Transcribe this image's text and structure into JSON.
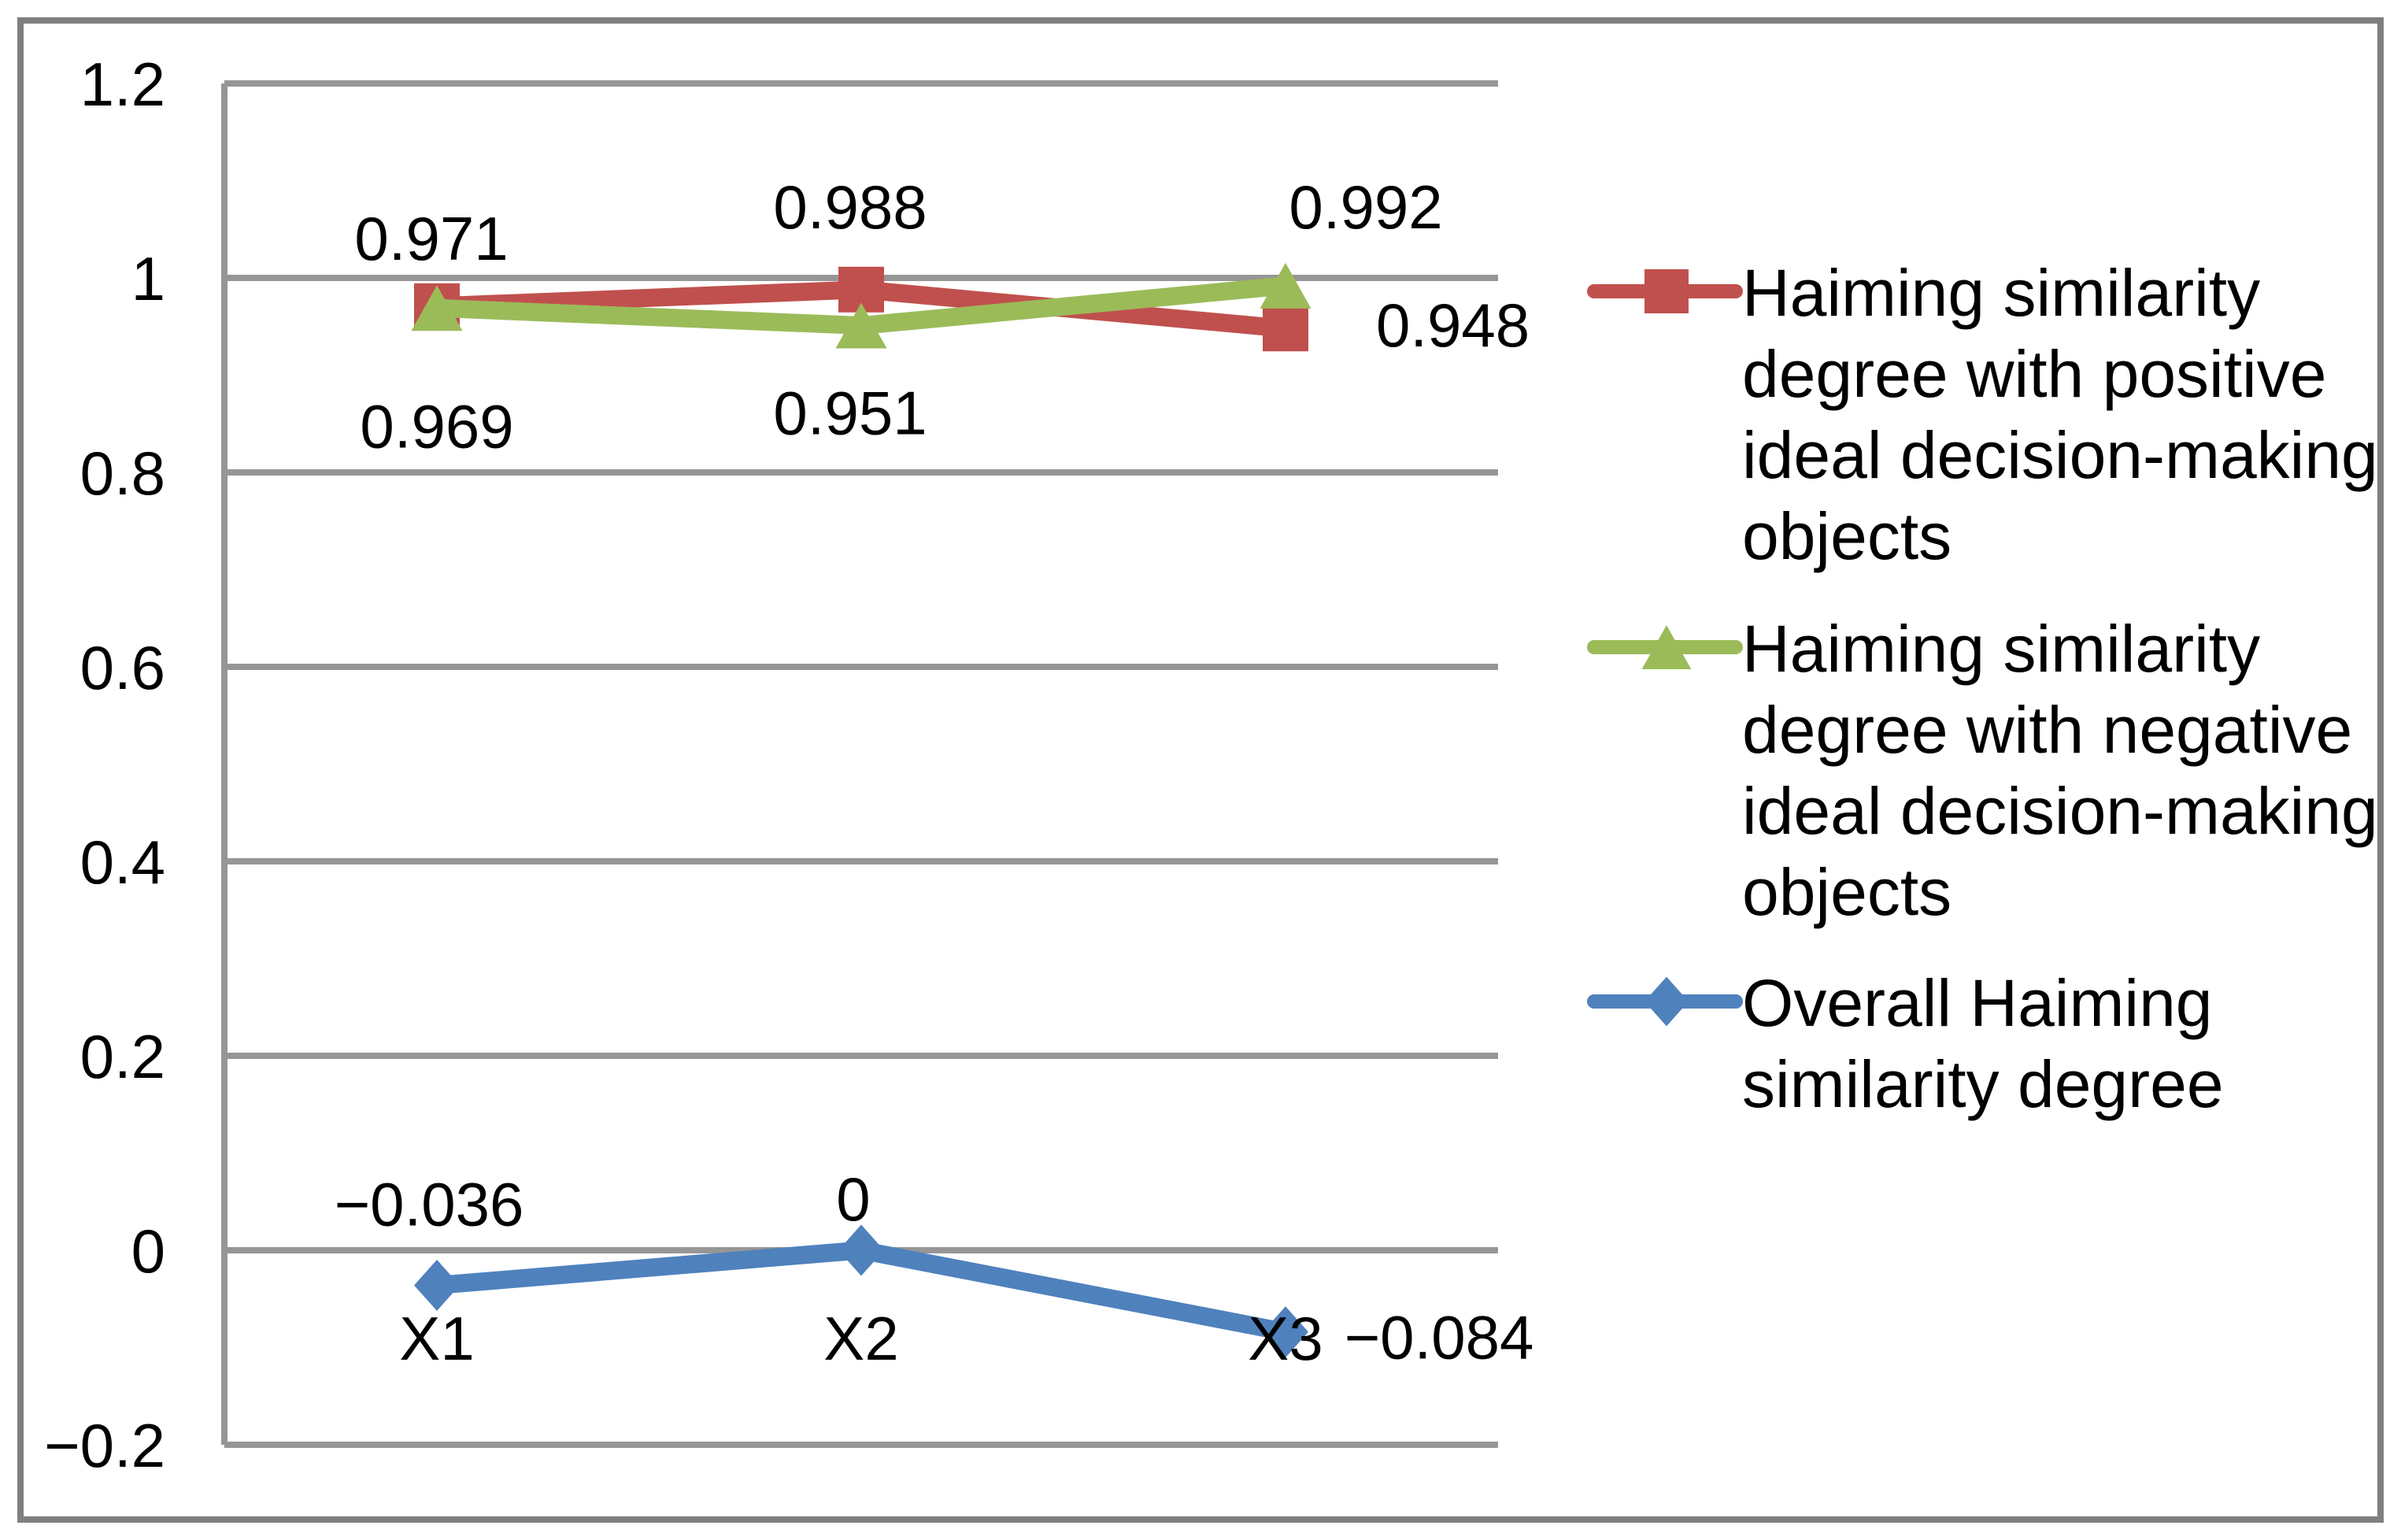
{
  "figure": {
    "background": "#ffffff",
    "border_color": "#7f7f7f",
    "gridline_color": "#969696",
    "text_color": "#000000"
  },
  "chart_data": {
    "type": "line",
    "title": "",
    "xlabel": "",
    "ylabel": "",
    "categories": [
      "X1",
      "X2",
      "X3"
    ],
    "series": [
      {
        "name": "Haiming similarity degree with positive ideal decision-making objects",
        "color": "#c0504d",
        "marker": "square",
        "values": [
          0.971,
          0.988,
          0.948
        ],
        "labels": [
          "0.971",
          "0.988",
          "0.948"
        ]
      },
      {
        "name": "Haiming similarity degree with negative ideal decision-making objects",
        "color": "#9bbb59",
        "marker": "triangle",
        "values": [
          0.969,
          0.951,
          0.992
        ],
        "labels": [
          "0.969",
          "0.951",
          "0.992"
        ]
      },
      {
        "name": "Overall Haiming similarity degree",
        "color": "#4f81bd",
        "marker": "diamond",
        "values": [
          -0.036,
          0,
          -0.084
        ],
        "labels": [
          "−0.036",
          "0",
          "−0.084"
        ]
      }
    ],
    "ylim": [
      -0.2,
      1.2
    ],
    "ytick_step": 0.2,
    "y_ticks": [
      {
        "value": 1.2,
        "label": "1.2"
      },
      {
        "value": 1.0,
        "label": "1"
      },
      {
        "value": 0.8,
        "label": "0.8"
      },
      {
        "value": 0.6,
        "label": "0.6"
      },
      {
        "value": 0.4,
        "label": "0.4"
      },
      {
        "value": 0.2,
        "label": "0.2"
      },
      {
        "value": 0.0,
        "label": "0"
      },
      {
        "value": -0.2,
        "label": "−0.2"
      }
    ],
    "grid": true,
    "data_labels_shown": true,
    "legend_position": "right",
    "legend": [
      {
        "lines": [
          "Haiming similarity",
          "degree with positive",
          "ideal decision-making",
          "objects"
        ]
      },
      {
        "lines": [
          "Haiming similarity",
          "degree with negative",
          "ideal decision-making",
          "objects"
        ]
      },
      {
        "lines": [
          "Overall Haiming",
          "similarity degree"
        ]
      }
    ]
  }
}
